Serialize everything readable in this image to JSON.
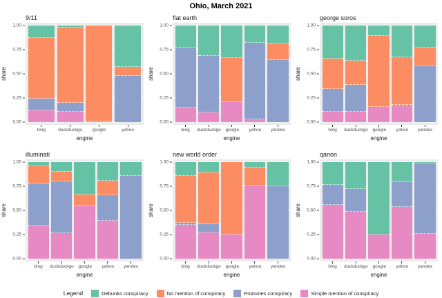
{
  "title": "Ohio, March 2021",
  "axes": {
    "x_label": "engine",
    "y_label": "share",
    "y_ticks": [
      "1.00",
      "0.75",
      "0.50",
      "0.25",
      "0.00"
    ],
    "y_range": [
      0,
      1
    ]
  },
  "legend": {
    "label": "Legend",
    "items": [
      {
        "name": "Debunks conspiracy",
        "color": "#66C2A5"
      },
      {
        "name": "No mention of conspiracy",
        "color": "#FC8D62"
      },
      {
        "name": "Promotes conspiracy",
        "color": "#8DA0CB"
      },
      {
        "name": "Simple mention of conspiracy",
        "color": "#E78AC3"
      }
    ]
  },
  "stack_bottom_to_top": [
    "Simple mention of conspiracy",
    "Promotes conspiracy",
    "No mention of conspiracy",
    "Debunks conspiracy"
  ],
  "style": {
    "panel_bg": "#EBEBEB",
    "grid_color": "#FFFFFF",
    "tick_text_color": "#4D4D4D",
    "text_color": "#1A1A1A"
  },
  "chart_data": [
    {
      "type": "bar",
      "stacked": true,
      "facet": "9/11",
      "categories": [
        "bing",
        "duckduckgo",
        "google",
        "yahoo"
      ],
      "series": [
        {
          "name": "Debunks conspiracy",
          "values": [
            0.13,
            0.02,
            0,
            0.43
          ]
        },
        {
          "name": "No mention of conspiracy",
          "values": [
            0.625,
            0.78,
            0.99,
            0.09
          ]
        },
        {
          "name": "Promotes conspiracy",
          "values": [
            0.125,
            0.09,
            0,
            0.48
          ]
        },
        {
          "name": "Simple mention of conspiracy",
          "values": [
            0.12,
            0.11,
            0.01,
            0
          ]
        }
      ],
      "ylim": [
        0,
        1
      ]
    },
    {
      "type": "bar",
      "stacked": true,
      "facet": "flat earth",
      "categories": [
        "bing",
        "duckduckgo",
        "google",
        "yahoo",
        "yandex"
      ],
      "series": [
        {
          "name": "Debunks conspiracy",
          "values": [
            0.225,
            0.315,
            0.335,
            0.18,
            0.195
          ]
        },
        {
          "name": "No mention of conspiracy",
          "values": [
            0,
            0,
            0.455,
            0,
            0.165
          ]
        },
        {
          "name": "Promotes conspiracy",
          "values": [
            0.625,
            0.585,
            0,
            0.79,
            0.64
          ]
        },
        {
          "name": "Simple mention of conspiracy",
          "values": [
            0.15,
            0.1,
            0.21,
            0.03,
            0
          ]
        }
      ],
      "ylim": [
        0,
        1
      ]
    },
    {
      "type": "bar",
      "stacked": true,
      "facet": "george soros",
      "categories": [
        "bing",
        "duckduckgo",
        "google",
        "yahoo",
        "yandex"
      ],
      "series": [
        {
          "name": "Debunks conspiracy",
          "values": [
            0.34,
            0.365,
            0.11,
            0.33,
            0.23
          ]
        },
        {
          "name": "No mention of conspiracy",
          "values": [
            0.315,
            0.25,
            0.735,
            0.49,
            0.19
          ]
        },
        {
          "name": "Promotes conspiracy",
          "values": [
            0.235,
            0.275,
            0,
            0.015,
            0.58
          ]
        },
        {
          "name": "Simple mention of conspiracy",
          "values": [
            0.11,
            0.11,
            0.155,
            0.165,
            0
          ]
        }
      ],
      "ylim": [
        0,
        1
      ]
    },
    {
      "type": "bar",
      "stacked": true,
      "facet": "illuminati",
      "categories": [
        "bing",
        "duckduckgo",
        "google",
        "yahoo",
        "yandex"
      ],
      "series": [
        {
          "name": "Debunks conspiracy",
          "values": [
            0.045,
            0.1,
            0.335,
            0.195,
            0.145
          ]
        },
        {
          "name": "No mention of conspiracy",
          "values": [
            0.175,
            0.1,
            0.115,
            0.15,
            0
          ]
        },
        {
          "name": "Promotes conspiracy",
          "values": [
            0.44,
            0.535,
            0,
            0.265,
            0.855
          ]
        },
        {
          "name": "Simple mention of conspiracy",
          "values": [
            0.34,
            0.265,
            0.55,
            0.39,
            0
          ]
        }
      ],
      "ylim": [
        0,
        1
      ]
    },
    {
      "type": "bar",
      "stacked": true,
      "facet": "new world order",
      "categories": [
        "bing",
        "duckduckgo",
        "google",
        "yahoo",
        "yandex"
      ],
      "series": [
        {
          "name": "Debunks conspiracy",
          "values": [
            0.14,
            0.105,
            0,
            0.055,
            0.25
          ]
        },
        {
          "name": "No mention of conspiracy",
          "values": [
            0.49,
            0.535,
            0.75,
            0.185,
            0
          ]
        },
        {
          "name": "Promotes conspiracy",
          "values": [
            0.02,
            0.09,
            0,
            0,
            0.75
          ]
        },
        {
          "name": "Simple mention of conspiracy",
          "values": [
            0.35,
            0.27,
            0.25,
            0.76,
            0
          ]
        }
      ],
      "ylim": [
        0,
        1
      ]
    },
    {
      "type": "bar",
      "stacked": true,
      "facet": "qanon",
      "categories": [
        "bing",
        "duckduckgo",
        "google",
        "yahoo",
        "yandex"
      ],
      "series": [
        {
          "name": "Debunks conspiracy",
          "values": [
            0.235,
            0.28,
            0.75,
            0.205,
            0.015
          ]
        },
        {
          "name": "No mention of conspiracy",
          "values": [
            0,
            0,
            0,
            0,
            0
          ]
        },
        {
          "name": "Promotes conspiracy",
          "values": [
            0.21,
            0.235,
            0,
            0.26,
            0.73
          ]
        },
        {
          "name": "Simple mention of conspiracy",
          "values": [
            0.555,
            0.485,
            0.25,
            0.535,
            0.255
          ]
        }
      ],
      "ylim": [
        0,
        1
      ]
    }
  ]
}
